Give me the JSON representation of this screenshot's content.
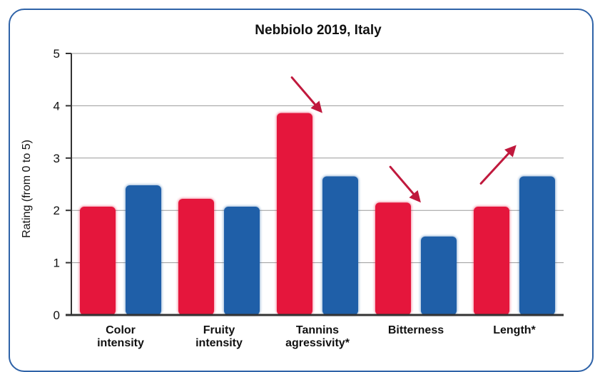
{
  "chart_data": {
    "type": "bar",
    "title": "Nebbiolo 2019, Italy",
    "xlabel": "",
    "ylabel": "Rating (from 0 to 5)",
    "ylim": [
      0,
      5
    ],
    "yticks": [
      "0",
      "1",
      "2",
      "3",
      "4",
      "5"
    ],
    "grid": true,
    "categories": [
      [
        "Color",
        "intensity"
      ],
      [
        "Fruity",
        "intensity"
      ],
      [
        "Tannins",
        "agressivity*"
      ],
      [
        "Bitterness"
      ],
      [
        "Length*"
      ]
    ],
    "series": [
      {
        "values": [
          2.07,
          2.22,
          3.86,
          2.15,
          2.07
        ]
      },
      {
        "values": [
          2.48,
          2.07,
          2.65,
          1.5,
          2.65
        ]
      }
    ],
    "arrows": [
      "down",
      "down",
      "up"
    ],
    "colors": {
      "series1": "#e5163c",
      "series2": "#1f5fa8",
      "arrow": "#c0193d",
      "frame": "#2f63a8",
      "grid": "#9a9a9a"
    }
  }
}
